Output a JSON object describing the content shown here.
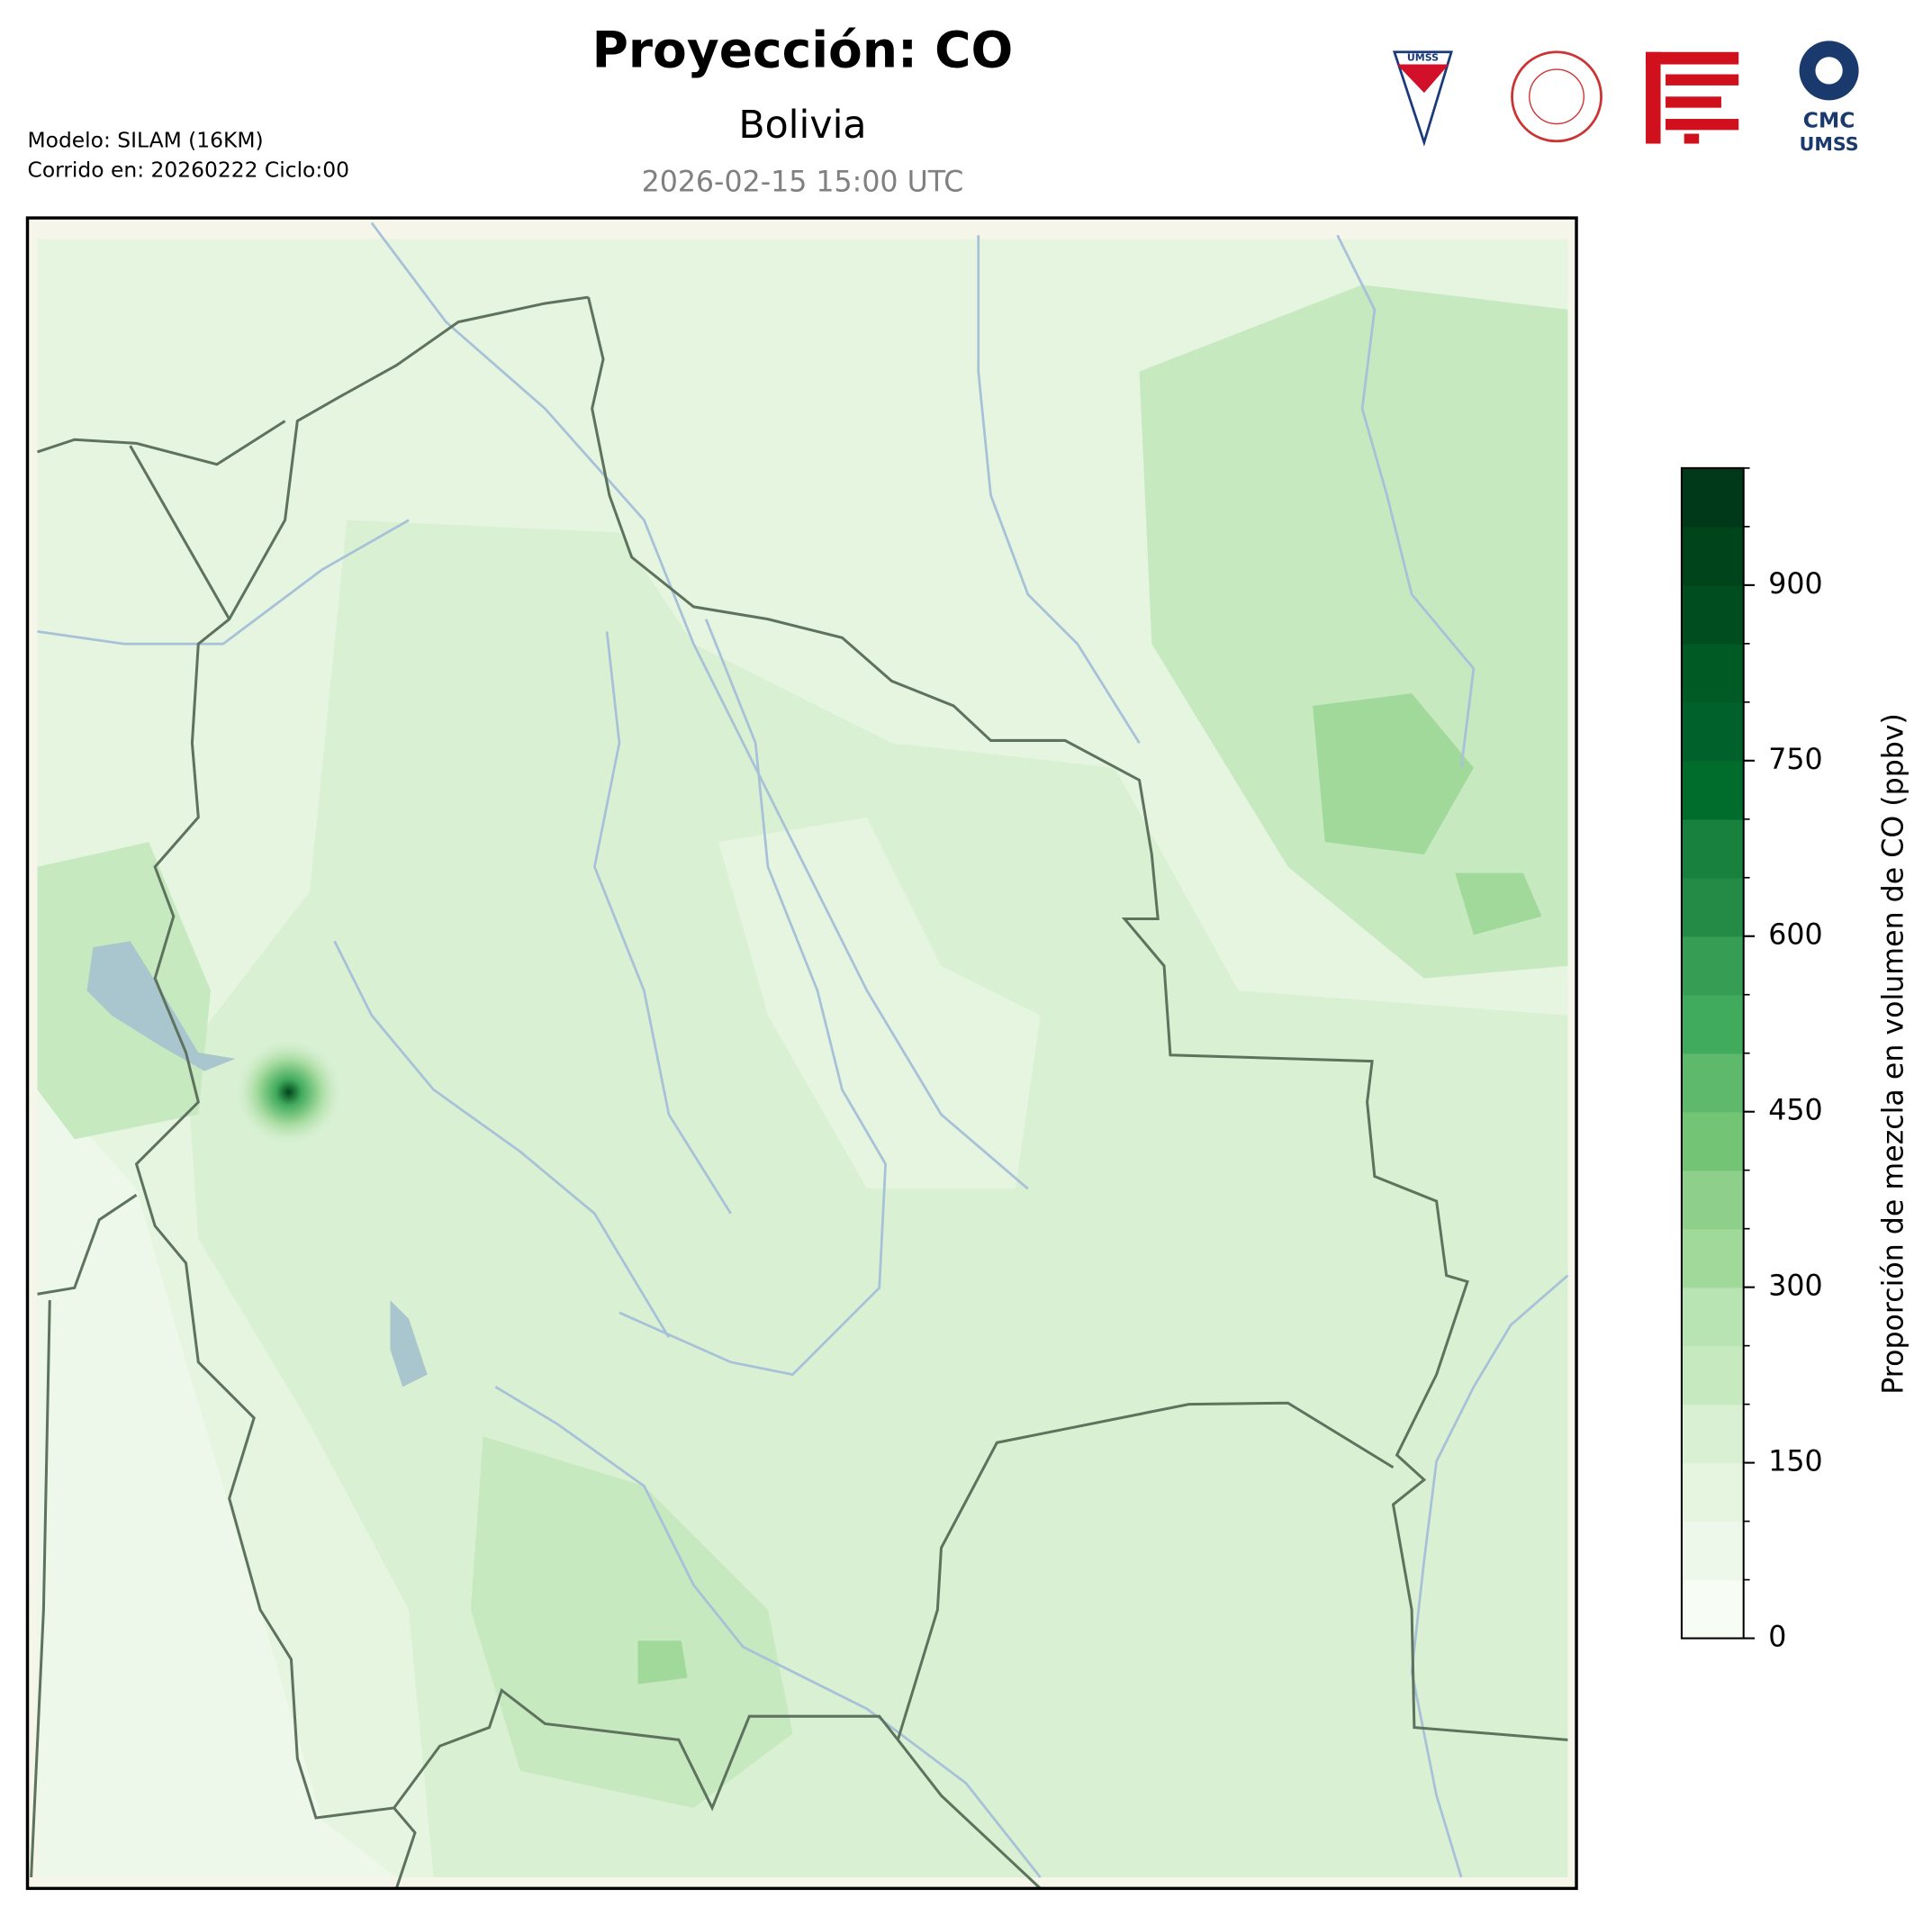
{
  "header": {
    "title": "Proyección: CO",
    "region": "Bolivia",
    "valid_time": "2026-02-15 15:00 UTC",
    "model": "Modelo: SILAM (16KM)",
    "run": "Corrido en: 20260222 Ciclo:00"
  },
  "logos": {
    "umss": "UMSS",
    "cmc_line1": "CMC",
    "cmc_line2": "UMSS"
  },
  "colorbar": {
    "label": "Proporción de mezcla en volumen de CO (ppbv)",
    "lim": [
      0,
      1000
    ],
    "ticks": [
      0,
      150,
      300,
      450,
      600,
      750,
      900
    ],
    "levels": [
      0,
      50,
      100,
      150,
      200,
      250,
      300,
      350,
      400,
      450,
      500,
      550,
      600,
      650,
      700,
      750,
      800,
      850,
      900,
      950,
      1000
    ],
    "colors": [
      "#f7fcf5",
      "#eef8ea",
      "#e5f5e0",
      "#d9f0d3",
      "#c7e9c0",
      "#b8e3b2",
      "#a1d99b",
      "#8ed08b",
      "#74c476",
      "#5fb96c",
      "#41ab5d",
      "#369e54",
      "#238b45",
      "#17813d",
      "#006d2c",
      "#00612a",
      "#005a24",
      "#004d1f",
      "#00441b",
      "#00391a"
    ]
  }
}
